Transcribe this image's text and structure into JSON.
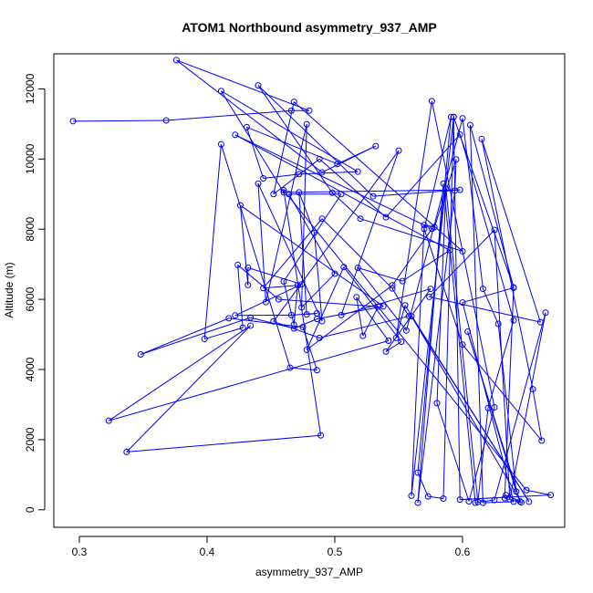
{
  "chart_data": {
    "type": "line",
    "title": "ATOM1 Northbound asymmetry_937_AMP",
    "xlabel": "asymmetry_937_AMP",
    "ylabel": "Altitude (m)",
    "xlim": [
      0.28,
      0.68
    ],
    "ylim": [
      -500,
      13000
    ],
    "x_ticks": [
      0.3,
      0.4,
      0.5,
      0.6
    ],
    "x_tick_labels": [
      "0.3",
      "0.4",
      "0.5",
      "0.6"
    ],
    "y_ticks": [
      0,
      2000,
      4000,
      6000,
      8000,
      10000,
      12000
    ],
    "y_tick_labels": [
      "0",
      "2000",
      "4000",
      "6000",
      "8000",
      "10000",
      "12000"
    ],
    "grid": false,
    "legend": "none",
    "series_color": "#0000ff",
    "series": [
      {
        "markers": "open-circle",
        "points": [
          [
            0.295,
            11080
          ],
          [
            0.368,
            11100
          ],
          [
            0.466,
            11380
          ],
          [
            0.48,
            11380
          ],
          [
            0.376,
            12820
          ],
          [
            0.49,
            9620
          ],
          [
            0.532,
            10370
          ],
          [
            0.502,
            9860
          ],
          [
            0.431,
            10910
          ],
          [
            0.444,
            9450
          ],
          [
            0.472,
            9570
          ],
          [
            0.518,
            9640
          ],
          [
            0.411,
            11940
          ],
          [
            0.46,
            9050
          ],
          [
            0.598,
            9120
          ],
          [
            0.53,
            8940
          ],
          [
            0.44,
            12100
          ],
          [
            0.498,
            9040
          ],
          [
            0.52,
            8300
          ],
          [
            0.6,
            7370
          ],
          [
            0.468,
            11630
          ],
          [
            0.452,
            9000
          ],
          [
            0.488,
            10000
          ],
          [
            0.54,
            8340
          ],
          [
            0.598,
            10700
          ],
          [
            0.64,
            5400
          ],
          [
            0.62,
            2900
          ],
          [
            0.612,
            220
          ],
          [
            0.587,
            9150
          ],
          [
            0.58,
            3040
          ],
          [
            0.605,
            240
          ],
          [
            0.625,
            2920
          ],
          [
            0.576,
            11650
          ],
          [
            0.548,
            4900
          ],
          [
            0.555,
            5830
          ],
          [
            0.652,
            230
          ],
          [
            0.56,
            5520
          ],
          [
            0.646,
            210
          ],
          [
            0.633,
            330
          ],
          [
            0.64,
            6330
          ],
          [
            0.6,
            5910
          ],
          [
            0.64,
            230
          ],
          [
            0.616,
            200
          ],
          [
            0.606,
            10970
          ],
          [
            0.64,
            6340
          ],
          [
            0.593,
            11200
          ],
          [
            0.56,
            400
          ],
          [
            0.57,
            8120
          ],
          [
            0.578,
            8060
          ],
          [
            0.595,
            9990
          ],
          [
            0.594,
            9100
          ],
          [
            0.565,
            200
          ],
          [
            0.585,
            9300
          ],
          [
            0.61,
            200
          ],
          [
            0.625,
            280
          ],
          [
            0.665,
            5620
          ],
          [
            0.637,
            300
          ],
          [
            0.625,
            7980
          ],
          [
            0.574,
            6070
          ],
          [
            0.661,
            5350
          ],
          [
            0.615,
            10570
          ],
          [
            0.655,
            3440
          ],
          [
            0.662,
            1970
          ],
          [
            0.6,
            4710
          ],
          [
            0.57,
            8010
          ],
          [
            0.591,
            11200
          ],
          [
            0.565,
            1060
          ],
          [
            0.573,
            380
          ],
          [
            0.585,
            320
          ],
          [
            0.593,
            11200
          ],
          [
            0.598,
            290
          ],
          [
            0.669,
            420
          ],
          [
            0.65,
            560
          ],
          [
            0.46,
            9110
          ],
          [
            0.489,
            2120
          ],
          [
            0.337,
            1650
          ],
          [
            0.434,
            5250
          ],
          [
            0.323,
            2540
          ],
          [
            0.542,
            4820
          ],
          [
            0.517,
            6060
          ],
          [
            0.522,
            4960
          ],
          [
            0.534,
            5790
          ],
          [
            0.456,
            6000
          ],
          [
            0.424,
            6980
          ],
          [
            0.428,
            5190
          ],
          [
            0.398,
            4870
          ],
          [
            0.411,
            10420
          ],
          [
            0.465,
            4050
          ],
          [
            0.486,
            3980
          ],
          [
            0.475,
            5210
          ],
          [
            0.417,
            5460
          ],
          [
            0.348,
            4430
          ],
          [
            0.434,
            5480
          ],
          [
            0.468,
            5170
          ],
          [
            0.486,
            5440
          ],
          [
            0.538,
            5800
          ],
          [
            0.426,
            8680
          ],
          [
            0.432,
            6410
          ],
          [
            0.432,
            6900
          ],
          [
            0.474,
            6430
          ],
          [
            0.422,
            5540
          ],
          [
            0.466,
            5550
          ],
          [
            0.486,
            5600
          ],
          [
            0.478,
            5570
          ],
          [
            0.472,
            9050
          ],
          [
            0.484,
            7900
          ],
          [
            0.49,
            5380
          ],
          [
            0.44,
            9300
          ],
          [
            0.446,
            5920
          ],
          [
            0.478,
            10990
          ],
          [
            0.474,
            5770
          ],
          [
            0.5,
            6730
          ],
          [
            0.464,
            9000
          ],
          [
            0.505,
            9000
          ],
          [
            0.46,
            6510
          ],
          [
            0.468,
            5280
          ],
          [
            0.471,
            6400
          ],
          [
            0.444,
            6320
          ],
          [
            0.49,
            8300
          ],
          [
            0.545,
            6310
          ],
          [
            0.558,
            5520
          ],
          [
            0.488,
            4900
          ],
          [
            0.452,
            5370
          ],
          [
            0.55,
            10240
          ],
          [
            0.505,
            5550
          ],
          [
            0.575,
            6300
          ],
          [
            0.54,
            4510
          ],
          [
            0.552,
            4790
          ],
          [
            0.507,
            6920
          ],
          [
            0.478,
            4560
          ],
          [
            0.545,
            6400
          ],
          [
            0.576,
            8010
          ],
          [
            0.422,
            10690
          ],
          [
            0.59,
            7400
          ],
          [
            0.553,
            6520
          ],
          [
            0.518,
            6900
          ],
          [
            0.556,
            5110
          ],
          [
            0.6,
            11160
          ],
          [
            0.616,
            6300
          ],
          [
            0.628,
            5300
          ],
          [
            0.642,
            520
          ],
          [
            0.604,
            5080
          ],
          [
            0.645,
            240
          ],
          [
            0.634,
            420
          ]
        ]
      }
    ]
  }
}
